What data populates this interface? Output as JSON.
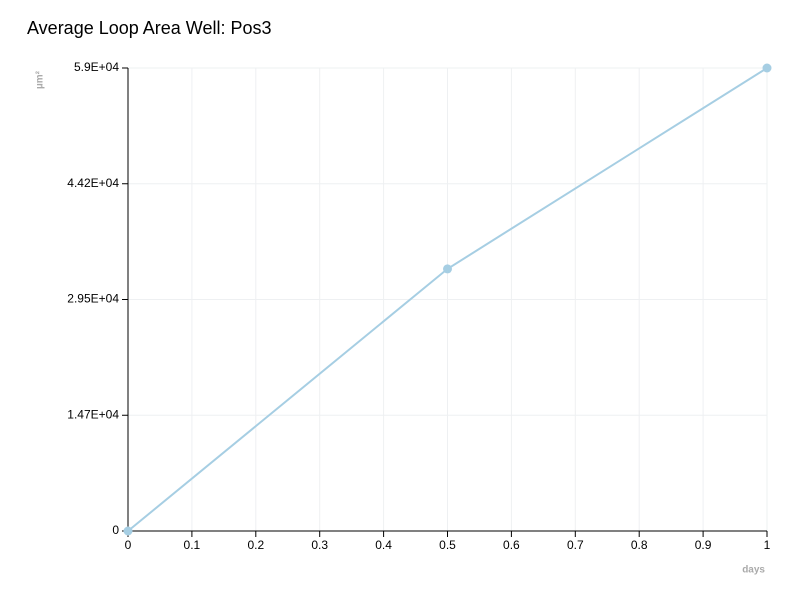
{
  "chart_data": {
    "type": "line",
    "title": "Average Loop Area Well: Pos3",
    "x_label": "days",
    "y_label": "µm²",
    "x": [
      0,
      0.5,
      1
    ],
    "values": [
      0,
      33400,
      59000
    ],
    "color": "#a6cee3",
    "xlim": [
      0,
      1
    ],
    "xticks": [
      0,
      0.1,
      0.2,
      0.3,
      0.4,
      0.5,
      0.6,
      0.7,
      0.8,
      0.9,
      1
    ],
    "ylim": [
      0,
      59000
    ],
    "yticks": [
      0,
      {
        "value": 14750,
        "label": "1.47E+04"
      },
      {
        "value": 29500,
        "label": "2.95E+04"
      },
      {
        "value": 44250,
        "label": "4.42E+04"
      },
      {
        "value": 59000,
        "label": "5.9E+04"
      }
    ],
    "grid": true
  }
}
